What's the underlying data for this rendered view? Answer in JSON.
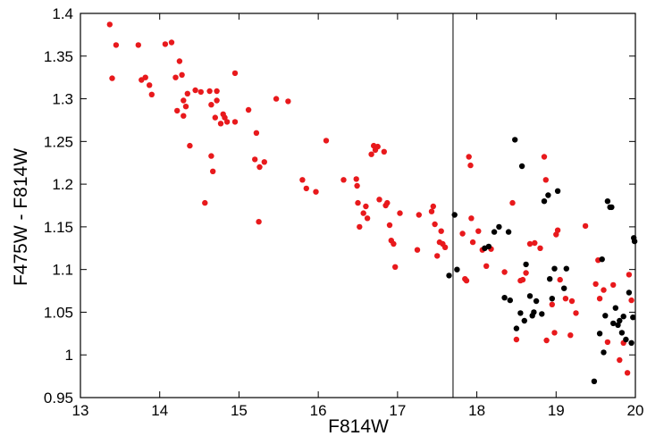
{
  "chart_data": {
    "type": "scatter",
    "xlabel": "F814W",
    "ylabel": "F475W - F814W",
    "xlim": [
      13,
      20
    ],
    "ylim": [
      0.95,
      1.4
    ],
    "xticks": [
      "13",
      "14",
      "15",
      "16",
      "17",
      "18",
      "19",
      "20"
    ],
    "yticks": [
      "0.95",
      "1",
      "1.05",
      "1.1",
      "1.15",
      "1.2",
      "1.25",
      "1.3",
      "1.35",
      "1.4"
    ],
    "vertical_line_x": 17.7,
    "grid": false,
    "series": [
      {
        "color": "#e8191c",
        "points": [
          [
            13.37,
            1.387
          ],
          [
            13.4,
            1.324
          ],
          [
            13.45,
            1.363
          ],
          [
            13.73,
            1.363
          ],
          [
            13.77,
            1.322
          ],
          [
            13.82,
            1.325
          ],
          [
            13.87,
            1.316
          ],
          [
            13.9,
            1.305
          ],
          [
            14.07,
            1.364
          ],
          [
            14.15,
            1.366
          ],
          [
            14.2,
            1.325
          ],
          [
            14.25,
            1.344
          ],
          [
            14.28,
            1.328
          ],
          [
            14.22,
            1.286
          ],
          [
            14.3,
            1.298
          ],
          [
            14.33,
            1.291
          ],
          [
            14.3,
            1.28
          ],
          [
            14.35,
            1.306
          ],
          [
            14.38,
            1.245
          ],
          [
            14.45,
            1.31
          ],
          [
            14.52,
            1.308
          ],
          [
            14.57,
            1.178
          ],
          [
            14.63,
            1.309
          ],
          [
            14.65,
            1.293
          ],
          [
            14.65,
            1.233
          ],
          [
            14.67,
            1.215
          ],
          [
            14.7,
            1.278
          ],
          [
            14.72,
            1.309
          ],
          [
            14.72,
            1.298
          ],
          [
            14.77,
            1.271
          ],
          [
            14.8,
            1.282
          ],
          [
            14.82,
            1.278
          ],
          [
            14.85,
            1.273
          ],
          [
            14.95,
            1.33
          ],
          [
            14.95,
            1.273
          ],
          [
            15.12,
            1.287
          ],
          [
            15.2,
            1.229
          ],
          [
            15.22,
            1.26
          ],
          [
            15.26,
            1.22
          ],
          [
            15.25,
            1.156
          ],
          [
            15.32,
            1.226
          ],
          [
            15.47,
            1.3
          ],
          [
            15.62,
            1.297
          ],
          [
            15.8,
            1.205
          ],
          [
            15.85,
            1.195
          ],
          [
            15.97,
            1.191
          ],
          [
            16.1,
            1.251
          ],
          [
            16.32,
            1.205
          ],
          [
            16.48,
            1.206
          ],
          [
            16.49,
            1.198
          ],
          [
            16.5,
            1.178
          ],
          [
            16.52,
            1.15
          ],
          [
            16.57,
            1.166
          ],
          [
            16.6,
            1.174
          ],
          [
            16.62,
            1.16
          ],
          [
            16.67,
            1.235
          ],
          [
            16.7,
            1.245
          ],
          [
            16.72,
            1.24
          ],
          [
            16.75,
            1.244
          ],
          [
            16.77,
            1.182
          ],
          [
            16.83,
            1.238
          ],
          [
            16.85,
            1.175
          ],
          [
            16.87,
            1.178
          ],
          [
            16.9,
            1.152
          ],
          [
            16.92,
            1.134
          ],
          [
            16.95,
            1.13
          ],
          [
            16.97,
            1.103
          ],
          [
            17.03,
            1.166
          ],
          [
            17.25,
            1.123
          ],
          [
            17.27,
            1.164
          ],
          [
            17.43,
            1.168
          ],
          [
            17.45,
            1.174
          ],
          [
            17.47,
            1.153
          ],
          [
            17.5,
            1.116
          ],
          [
            17.53,
            1.132
          ],
          [
            17.55,
            1.145
          ],
          [
            17.57,
            1.13
          ],
          [
            17.6,
            1.126
          ],
          [
            17.82,
            1.142
          ],
          [
            17.85,
            1.089
          ],
          [
            17.87,
            1.087
          ],
          [
            17.9,
            1.232
          ],
          [
            17.92,
            1.222
          ],
          [
            17.93,
            1.16
          ],
          [
            17.95,
            1.132
          ],
          [
            18.02,
            1.145
          ],
          [
            18.07,
            1.123
          ],
          [
            18.12,
            1.104
          ],
          [
            18.18,
            1.124
          ],
          [
            18.35,
            1.097
          ],
          [
            18.45,
            1.178
          ],
          [
            18.5,
            1.018
          ],
          [
            18.55,
            1.087
          ],
          [
            18.58,
            1.088
          ],
          [
            18.62,
            1.096
          ],
          [
            18.67,
            1.13
          ],
          [
            18.73,
            1.131
          ],
          [
            18.8,
            1.125
          ],
          [
            18.85,
            1.232
          ],
          [
            18.87,
            1.205
          ],
          [
            18.88,
            1.017
          ],
          [
            18.95,
            1.059
          ],
          [
            18.98,
            1.026
          ],
          [
            19.0,
            1.141
          ],
          [
            19.02,
            1.146
          ],
          [
            19.05,
            1.088
          ],
          [
            19.12,
            1.066
          ],
          [
            19.18,
            1.023
          ],
          [
            19.2,
            1.063
          ],
          [
            19.25,
            1.049
          ],
          [
            19.37,
            1.151
          ],
          [
            19.5,
            1.083
          ],
          [
            19.53,
            1.111
          ],
          [
            19.55,
            1.066
          ],
          [
            19.6,
            1.076
          ],
          [
            19.65,
            1.015
          ],
          [
            19.72,
            1.082
          ],
          [
            19.8,
            0.994
          ],
          [
            19.85,
            1.014
          ],
          [
            19.9,
            0.979
          ],
          [
            19.92,
            1.094
          ],
          [
            19.95,
            1.064
          ]
        ]
      },
      {
        "color": "#000000",
        "points": [
          [
            17.65,
            1.093
          ],
          [
            17.72,
            1.164
          ],
          [
            17.75,
            1.1
          ],
          [
            18.1,
            1.125
          ],
          [
            18.15,
            1.127
          ],
          [
            18.22,
            1.144
          ],
          [
            18.28,
            1.15
          ],
          [
            18.35,
            1.067
          ],
          [
            18.4,
            1.144
          ],
          [
            18.42,
            1.064
          ],
          [
            18.48,
            1.252
          ],
          [
            18.5,
            1.031
          ],
          [
            18.55,
            1.049
          ],
          [
            18.57,
            1.221
          ],
          [
            18.6,
            1.04
          ],
          [
            18.62,
            1.106
          ],
          [
            18.67,
            1.069
          ],
          [
            18.7,
            1.046
          ],
          [
            18.72,
            1.05
          ],
          [
            18.75,
            1.063
          ],
          [
            18.82,
            1.048
          ],
          [
            18.85,
            1.18
          ],
          [
            18.9,
            1.187
          ],
          [
            18.92,
            1.089
          ],
          [
            18.95,
            1.066
          ],
          [
            18.98,
            1.101
          ],
          [
            19.02,
            1.192
          ],
          [
            19.1,
            1.078
          ],
          [
            19.13,
            1.101
          ],
          [
            19.48,
            0.969
          ],
          [
            19.55,
            1.025
          ],
          [
            19.58,
            1.112
          ],
          [
            19.6,
            1.003
          ],
          [
            19.62,
            1.046
          ],
          [
            19.65,
            1.18
          ],
          [
            19.68,
            1.173
          ],
          [
            19.7,
            1.173
          ],
          [
            19.72,
            1.037
          ],
          [
            19.75,
            1.055
          ],
          [
            19.78,
            1.035
          ],
          [
            19.8,
            1.04
          ],
          [
            19.83,
            1.026
          ],
          [
            19.85,
            1.045
          ],
          [
            19.88,
            1.018
          ],
          [
            19.92,
            1.073
          ],
          [
            19.95,
            1.014
          ],
          [
            19.97,
            1.044
          ],
          [
            19.98,
            1.137
          ],
          [
            19.99,
            1.133
          ]
        ]
      }
    ]
  }
}
